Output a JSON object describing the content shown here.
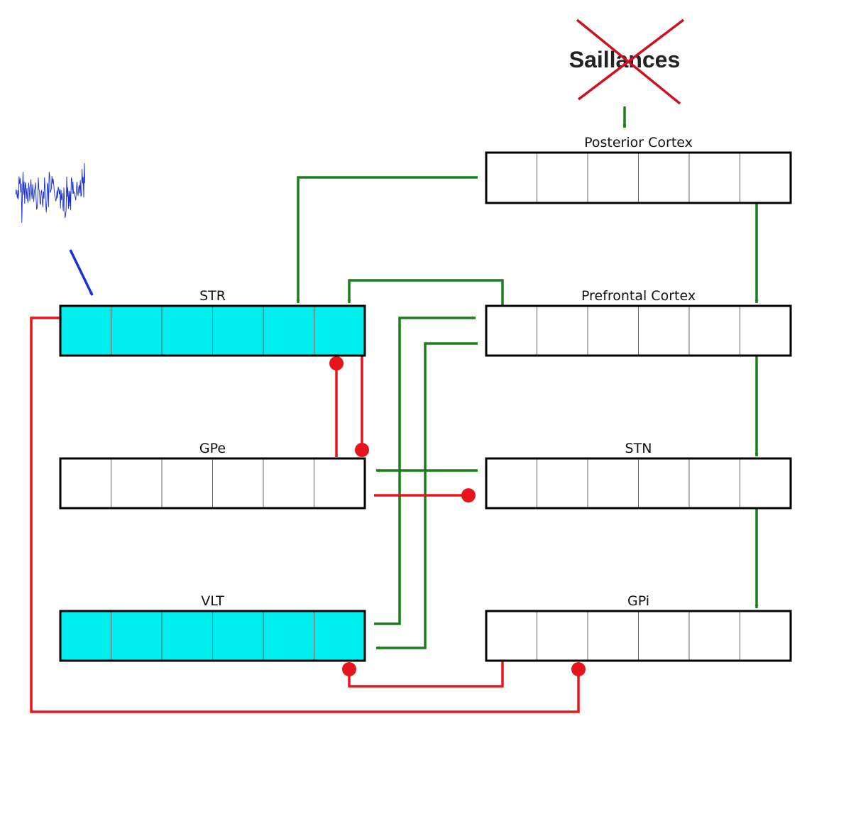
{
  "salience": {
    "label": "Saillances",
    "crossed_out": true
  },
  "nuclei": {
    "posterior_cortex": {
      "label": "Posterior Cortex",
      "cells": 6,
      "active": false
    },
    "prefrontal_cortex": {
      "label": "Prefrontal Cortex",
      "cells": 6,
      "active": false
    },
    "str": {
      "label": "STR",
      "cells": 6,
      "active": true
    },
    "gpe": {
      "label": "GPe",
      "cells": 6,
      "active": false
    },
    "stn": {
      "label": "STN",
      "cells": 6,
      "active": false
    },
    "vlt": {
      "label": "VLT",
      "cells": 6,
      "active": true
    },
    "gpi": {
      "label": "GPi",
      "cells": 6,
      "active": false
    }
  },
  "connections": {
    "excitatory": [
      "posterior_cortex-str",
      "posterior_cortex-prefrontal_cortex",
      "prefrontal_cortex-str",
      "vlt-prefrontal_cortex",
      "prefrontal_cortex-vlt",
      "prefrontal_cortex-stn",
      "stn-gpe",
      "stn-gpi"
    ],
    "inhibitory": [
      "gpe-str",
      "str-gpe",
      "gpe-stn",
      "gpi-vlt",
      "str-gpi"
    ]
  },
  "noise_input": {
    "target": "str"
  },
  "colors": {
    "excitatory": "#1a7f1a",
    "inhibitory": "#e8141b",
    "active_fill": "#00eeee",
    "inactive_fill": "#ffffff",
    "noise": "#1a2fd6",
    "cross": "#cc1122"
  }
}
